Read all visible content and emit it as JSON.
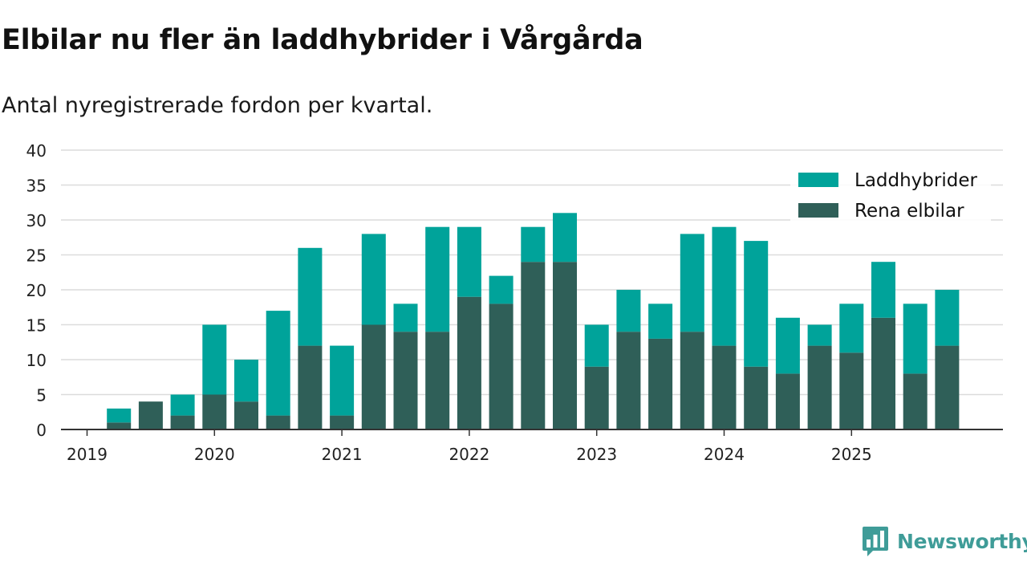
{
  "header": {
    "title": "Elbilar nu fler än laddhybrider i Vårgårda",
    "subtitle": "Antal nyregistrerade fordon per kvartal."
  },
  "branding": {
    "name": "Newsworthy",
    "color": "#3f9c98"
  },
  "chart_data": {
    "type": "bar",
    "stacked": true,
    "title": "Elbilar nu fler än laddhybrider i Vårgårda",
    "subtitle": "Antal nyregistrerade fordon per kvartal.",
    "xlabel": "",
    "ylabel": "",
    "ylim": [
      0,
      40
    ],
    "yticks": [
      0,
      5,
      10,
      15,
      20,
      25,
      30,
      35,
      40
    ],
    "year_ticks": [
      "2019",
      "2020",
      "2021",
      "2022",
      "2023",
      "2024",
      "2025"
    ],
    "categories": [
      "2019 Q1",
      "2019 Q2",
      "2019 Q3",
      "2019 Q4",
      "2020 Q1",
      "2020 Q2",
      "2020 Q3",
      "2020 Q4",
      "2021 Q1",
      "2021 Q2",
      "2021 Q3",
      "2021 Q4",
      "2022 Q1",
      "2022 Q2",
      "2022 Q3",
      "2022 Q4",
      "2023 Q1",
      "2023 Q2",
      "2023 Q3",
      "2023 Q4",
      "2024 Q1",
      "2024 Q2",
      "2024 Q3",
      "2024 Q4",
      "2025 Q1",
      "2025 Q2",
      "2025 Q3",
      "2025 Q4"
    ],
    "legend_position": "top-right",
    "grid": true,
    "series": [
      {
        "name": "Rena elbilar",
        "color": "#2f5f58",
        "values": [
          0,
          1,
          4,
          2,
          5,
          4,
          2,
          12,
          2,
          15,
          14,
          14,
          19,
          18,
          24,
          24,
          9,
          14,
          13,
          14,
          12,
          9,
          8,
          12,
          11,
          16,
          8,
          12
        ]
      },
      {
        "name": "Laddhybrider",
        "color": "#00a39a",
        "values": [
          0,
          2,
          0,
          3,
          10,
          6,
          15,
          14,
          10,
          13,
          4,
          15,
          10,
          4,
          5,
          7,
          6,
          6,
          5,
          14,
          17,
          18,
          8,
          3,
          7,
          8,
          10,
          8
        ]
      }
    ],
    "legend_order": [
      "Laddhybrider",
      "Rena elbilar"
    ]
  }
}
